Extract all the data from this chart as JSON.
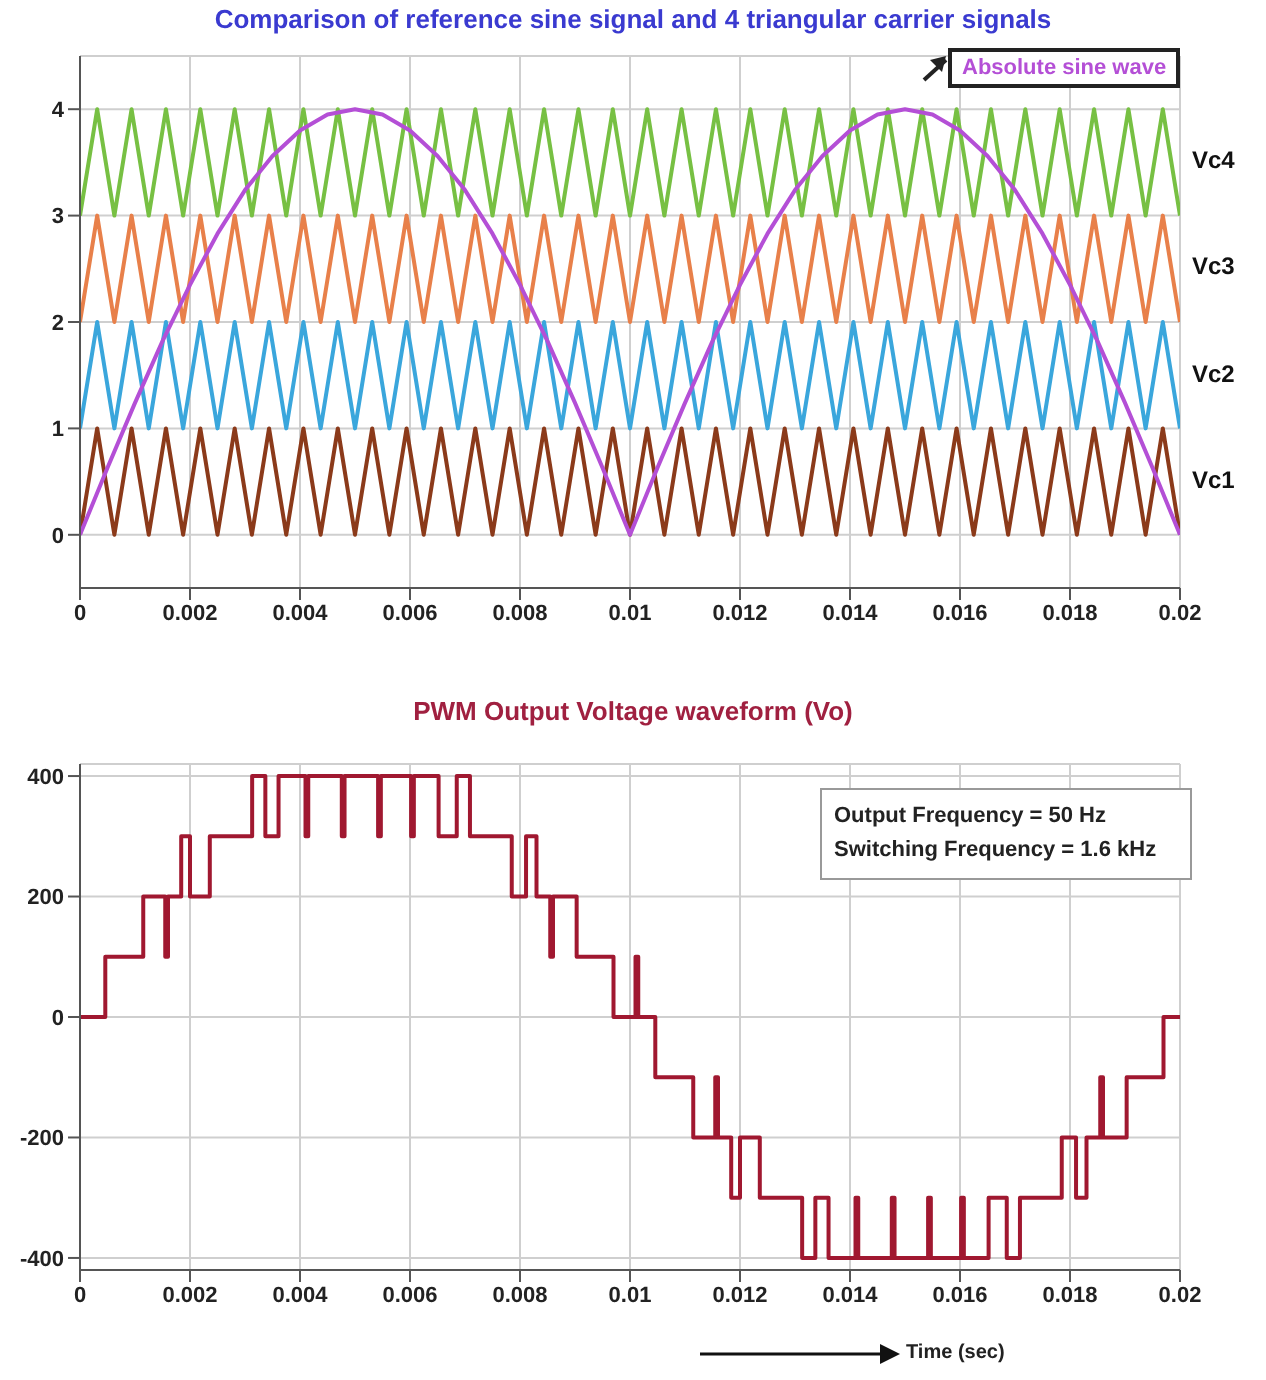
{
  "chart_data": [
    {
      "type": "line",
      "title": "Comparison of reference sine signal and  4 triangular carrier signals",
      "marker": "none",
      "grid": true,
      "xlim": [
        0,
        0.02
      ],
      "xticks": [
        0,
        0.002,
        0.004,
        0.006,
        0.008,
        0.01,
        0.012,
        0.014,
        0.016,
        0.018,
        0.02
      ],
      "ylim": [
        -0.5,
        4.5
      ],
      "yticks": [
        0,
        1,
        2,
        3,
        4
      ],
      "x": [
        0,
        0.0003125,
        0.000625,
        0.0009375,
        0.00125,
        0.0015625,
        0.001875,
        0.0021875,
        0.0025,
        0.0028125,
        0.003125,
        0.0034375,
        0.00375,
        0.0040625,
        0.004375,
        0.0046875,
        0.005,
        0.0053125,
        0.005625,
        0.0059375,
        0.00625,
        0.0065625,
        0.006875,
        0.0071875,
        0.0075,
        0.0078125,
        0.008125,
        0.0084375,
        0.00875,
        0.0090625,
        0.009375,
        0.0096875,
        0.01,
        0.0103125,
        0.010625,
        0.0109375,
        0.01125,
        0.0115625,
        0.011875,
        0.0121875,
        0.0125,
        0.0128125,
        0.013125,
        0.0134375,
        0.01375,
        0.0140625,
        0.014375,
        0.0146875,
        0.015,
        0.0153125,
        0.015625,
        0.0159375,
        0.01625,
        0.0165625,
        0.016875,
        0.0171875,
        0.0175,
        0.0178125,
        0.018125,
        0.0184375,
        0.01875,
        0.0190625,
        0.019375,
        0.0196875,
        0.02
      ],
      "series": [
        {
          "name": "Vc4",
          "color": "#77c043",
          "values": [
            3,
            4,
            3,
            4,
            3,
            4,
            3,
            4,
            3,
            4,
            3,
            4,
            3,
            4,
            3,
            4,
            3,
            4,
            3,
            4,
            3,
            4,
            3,
            4,
            3,
            4,
            3,
            4,
            3,
            4,
            3,
            4,
            3,
            4,
            3,
            4,
            3,
            4,
            3,
            4,
            3,
            4,
            3,
            4,
            3,
            4,
            3,
            4,
            3,
            4,
            3,
            4,
            3,
            4,
            3,
            4,
            3,
            4,
            3,
            4,
            3,
            4,
            3,
            4,
            3
          ]
        },
        {
          "name": "Vc3",
          "color": "#e8804a",
          "values": [
            2,
            3,
            2,
            3,
            2,
            3,
            2,
            3,
            2,
            3,
            2,
            3,
            2,
            3,
            2,
            3,
            2,
            3,
            2,
            3,
            2,
            3,
            2,
            3,
            2,
            3,
            2,
            3,
            2,
            3,
            2,
            3,
            2,
            3,
            2,
            3,
            2,
            3,
            2,
            3,
            2,
            3,
            2,
            3,
            2,
            3,
            2,
            3,
            2,
            3,
            2,
            3,
            2,
            3,
            2,
            3,
            2,
            3,
            2,
            3,
            2,
            3,
            2,
            3,
            2
          ]
        },
        {
          "name": "Vc2",
          "color": "#3aa6dc",
          "values": [
            1,
            2,
            1,
            2,
            1,
            2,
            1,
            2,
            1,
            2,
            1,
            2,
            1,
            2,
            1,
            2,
            1,
            2,
            1,
            2,
            1,
            2,
            1,
            2,
            1,
            2,
            1,
            2,
            1,
            2,
            1,
            2,
            1,
            2,
            1,
            2,
            1,
            2,
            1,
            2,
            1,
            2,
            1,
            2,
            1,
            2,
            1,
            2,
            1,
            2,
            1,
            2,
            1,
            2,
            1,
            2,
            1,
            2,
            1,
            2,
            1,
            2,
            1,
            2,
            1
          ]
        },
        {
          "name": "Vc1",
          "color": "#8b3a1a",
          "values": [
            0,
            1,
            0,
            1,
            0,
            1,
            0,
            1,
            0,
            1,
            0,
            1,
            0,
            1,
            0,
            1,
            0,
            1,
            0,
            1,
            0,
            1,
            0,
            1,
            0,
            1,
            0,
            1,
            0,
            1,
            0,
            1,
            0,
            1,
            0,
            1,
            0,
            1,
            0,
            1,
            0,
            1,
            0,
            1,
            0,
            1,
            0,
            1,
            0,
            1,
            0,
            1,
            0,
            1,
            0,
            1,
            0,
            1,
            0,
            1,
            0,
            1,
            0,
            1,
            0
          ]
        },
        {
          "name": "Absolute sine wave",
          "color": "#b44fd6",
          "x": [
            0,
            0.0005,
            0.001,
            0.0015,
            0.002,
            0.0025,
            0.003,
            0.0035,
            0.004,
            0.0045,
            0.005,
            0.0055,
            0.006,
            0.0065,
            0.007,
            0.0075,
            0.008,
            0.0085,
            0.009,
            0.0095,
            0.01,
            0.0105,
            0.011,
            0.0115,
            0.012,
            0.0125,
            0.013,
            0.0135,
            0.014,
            0.0145,
            0.015,
            0.0155,
            0.016,
            0.0165,
            0.017,
            0.0175,
            0.018,
            0.0185,
            0.019,
            0.0195,
            0.02
          ],
          "values": [
            0,
            0.63,
            1.24,
            1.82,
            2.35,
            2.83,
            3.24,
            3.56,
            3.8,
            3.95,
            4,
            3.95,
            3.8,
            3.56,
            3.24,
            2.83,
            2.35,
            1.82,
            1.24,
            0.63,
            0,
            0.63,
            1.24,
            1.82,
            2.35,
            2.83,
            3.24,
            3.56,
            3.8,
            3.95,
            4,
            3.95,
            3.8,
            3.56,
            3.24,
            2.83,
            2.35,
            1.82,
            1.24,
            0.63,
            0
          ]
        }
      ]
    },
    {
      "type": "step",
      "title": "PWM Output Voltage waveform (Vo)",
      "xlabel": "Time (sec)",
      "marker": "none",
      "grid": true,
      "xlim": [
        0,
        0.02
      ],
      "xticks": [
        0,
        0.002,
        0.004,
        0.006,
        0.008,
        0.01,
        0.012,
        0.014,
        0.016,
        0.018,
        0.02
      ],
      "ylim": [
        -420,
        420
      ],
      "yticks": [
        -400,
        -200,
        0,
        200,
        400
      ],
      "annotations": [
        "Output Frequency = 50 Hz",
        "Switching Frequency = 1.6 kHz"
      ],
      "x": [
        0,
        0.00046,
        0.00115,
        0.00155,
        0.0016,
        0.00184,
        0.002,
        0.00236,
        0.00313,
        0.00337,
        0.00361,
        0.0041,
        0.00415,
        0.00476,
        0.00481,
        0.00542,
        0.00547,
        0.00602,
        0.00607,
        0.00652,
        0.00685,
        0.00709,
        0.00785,
        0.00811,
        0.0083,
        0.00855,
        0.0086,
        0.00903,
        0.0097,
        0.0101,
        0.01015,
        0.01046,
        0.01115,
        0.01155,
        0.0116,
        0.01184,
        0.012,
        0.01236,
        0.01313,
        0.01337,
        0.01361,
        0.0141,
        0.01415,
        0.01476,
        0.01481,
        0.01542,
        0.01547,
        0.01602,
        0.01607,
        0.01652,
        0.01685,
        0.01709,
        0.01785,
        0.01811,
        0.0183,
        0.01855,
        0.0186,
        0.01903,
        0.0197,
        0.02
      ],
      "series": [
        {
          "color": "#a01830",
          "values": [
            0,
            100,
            200,
            100,
            200,
            300,
            200,
            300,
            400,
            300,
            400,
            300,
            400,
            300,
            400,
            300,
            400,
            300,
            400,
            300,
            400,
            300,
            200,
            300,
            200,
            100,
            200,
            100,
            0,
            100,
            0,
            -100,
            -200,
            -100,
            -200,
            -300,
            -200,
            -300,
            -400,
            -300,
            -400,
            -300,
            -400,
            -300,
            -400,
            -300,
            -400,
            -300,
            -400,
            -300,
            -400,
            -300,
            -200,
            -300,
            -200,
            -100,
            -200,
            -100,
            0,
            0
          ]
        }
      ]
    }
  ]
}
